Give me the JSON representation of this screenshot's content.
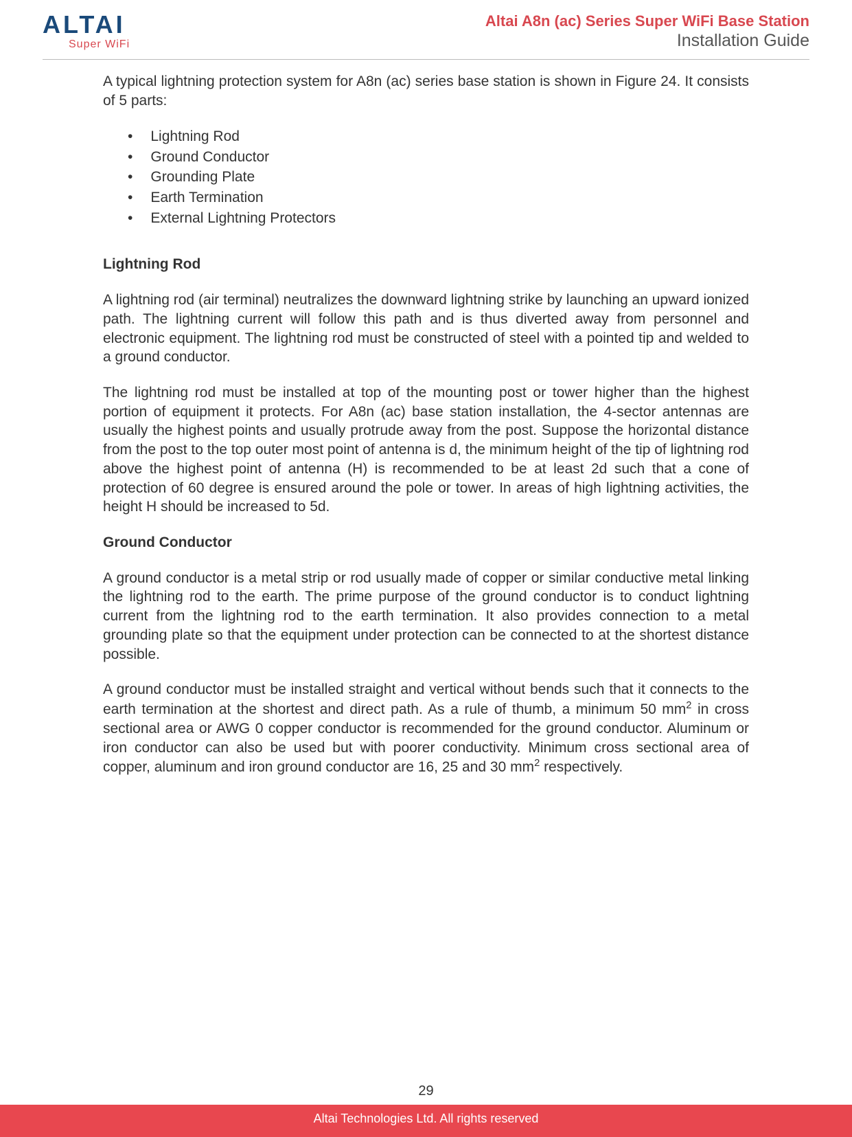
{
  "colors": {
    "brand_blue": "#1a4a7a",
    "brand_red": "#d8474f",
    "footer_bg": "#e8474f",
    "text": "#333333",
    "rule": "#bbbbbb",
    "bg": "#ffffff"
  },
  "typography": {
    "body_family": "Century Gothic, Futura, Avant Garde, sans-serif",
    "body_size_pt": 16,
    "heading_weight": "bold",
    "header_title_size_pt": 17,
    "header_subtitle_size_pt": 19
  },
  "header": {
    "logo_main": "ALTAI",
    "logo_sub": "Super WiFi",
    "title": "Altai A8n (ac) Series Super WiFi Base Station",
    "subtitle": "Installation Guide"
  },
  "body": {
    "intro": "A typical lightning protection system for A8n (ac) series base station is shown in Figure 24. It consists of 5 parts:",
    "bullets": [
      "Lightning Rod",
      "Ground Conductor",
      "Grounding Plate",
      "Earth Termination",
      "External Lightning Protectors"
    ],
    "h1": "Lightning Rod",
    "p1": "A lightning rod (air terminal) neutralizes the downward lightning strike by launching an upward ionized path. The lightning current will follow this path and is thus diverted away from personnel and electronic equipment. The lightning rod must be constructed of steel with a pointed tip and welded to a ground conductor.",
    "p2": "The lightning rod must be installed at top of the mounting post or tower higher than the highest portion of equipment it protects. For A8n (ac) base station installation, the 4-sector antennas are usually the highest points and usually protrude away from the post. Suppose the horizontal distance from the post to the top outer most point of antenna is d, the minimum height of the tip of lightning rod above the highest point of antenna (H) is recommended to be at least 2d such that a cone of protection of 60 degree is ensured around the pole or tower. In areas of high lightning activities, the height H should be increased to 5d.",
    "h2": "Ground Conductor",
    "p3": "A ground conductor is a metal strip or rod usually made of copper or similar conductive metal linking the lightning rod to the earth. The prime purpose of the ground conductor is to conduct lightning current from the lightning rod to the earth termination. It also provides connection to a metal grounding plate so that the equipment under protection can be connected to at the shortest distance possible.",
    "p4_pre": "A ground conductor must be installed straight and vertical without bends such that it connects to the earth termination at the shortest and direct path. As a rule of thumb, a minimum 50 mm",
    "p4_mid": " in cross sectional area or AWG 0 copper conductor is recommended for the ground conductor. Aluminum or iron conductor can also be used but with poorer conductivity. Minimum cross sectional area of copper, aluminum and iron ground conductor are 16, 25 and 30 mm",
    "p4_post": " respectively.",
    "sup": "2"
  },
  "footer": {
    "page": "29",
    "copyright": "Altai Technologies Ltd. All rights reserved"
  }
}
